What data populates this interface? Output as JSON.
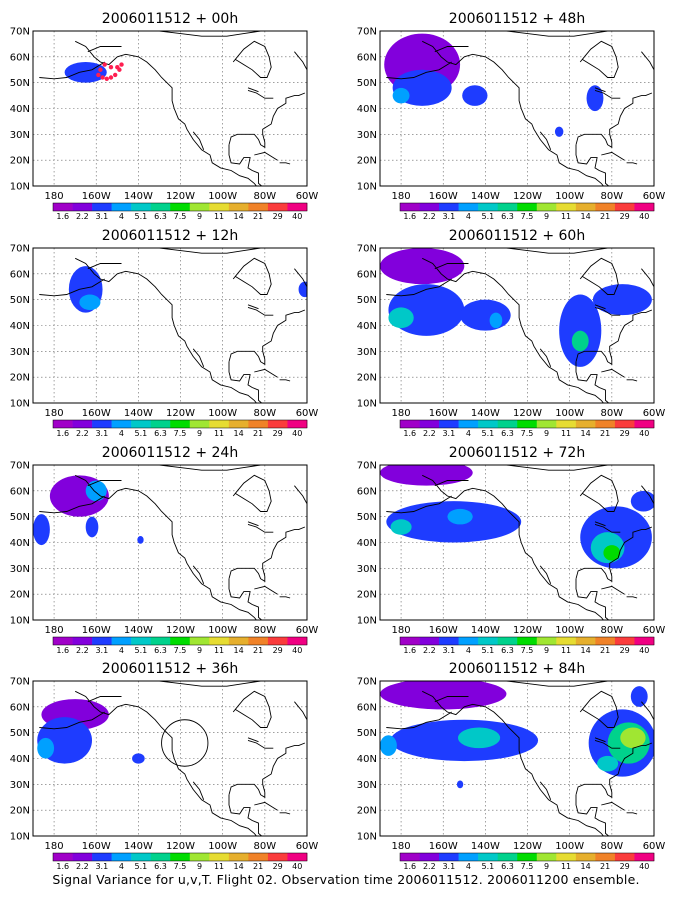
{
  "chart_data": [
    {
      "type": "heatmap",
      "title": "2006011512 + 00h",
      "xticks": [
        "180",
        "160W",
        "140W",
        "120W",
        "100W",
        "80W",
        "60W"
      ],
      "yticks": [
        "70N",
        "60N",
        "50N",
        "40N",
        "30N",
        "20N",
        "10N"
      ],
      "xlim": [
        -190,
        -60
      ],
      "ylim": [
        10,
        70
      ],
      "blobs": [
        {
          "lon": -165,
          "lat": 54,
          "rx": 10,
          "ry": 4,
          "level": 2
        }
      ],
      "markers": [
        {
          "lon": -159,
          "lat": 53
        },
        {
          "lon": -157,
          "lat": 52
        },
        {
          "lon": -155,
          "lat": 51.5
        },
        {
          "lon": -153,
          "lat": 52
        },
        {
          "lon": -151,
          "lat": 53
        },
        {
          "lon": -149,
          "lat": 55
        },
        {
          "lon": -148,
          "lat": 57
        },
        {
          "lon": -150,
          "lat": 56
        },
        {
          "lon": -153,
          "lat": 56
        },
        {
          "lon": -156,
          "lat": 57
        },
        {
          "lon": -158,
          "lat": 55
        }
      ]
    },
    {
      "type": "heatmap",
      "title": "2006011512 + 48h",
      "xticks": [
        "180",
        "160W",
        "140W",
        "120W",
        "100W",
        "80W",
        "60W"
      ],
      "yticks": [
        "70N",
        "60N",
        "50N",
        "40N",
        "30N",
        "20N",
        "10N"
      ],
      "xlim": [
        -190,
        -60
      ],
      "ylim": [
        10,
        70
      ],
      "blobs": [
        {
          "lon": -170,
          "lat": 57,
          "rx": 18,
          "ry": 12,
          "level": 1
        },
        {
          "lon": -170,
          "lat": 48,
          "rx": 14,
          "ry": 7,
          "level": 2
        },
        {
          "lon": -180,
          "lat": 45,
          "rx": 4,
          "ry": 3,
          "level": 3
        },
        {
          "lon": -145,
          "lat": 45,
          "rx": 6,
          "ry": 4,
          "level": 2
        },
        {
          "lon": -88,
          "lat": 44,
          "rx": 4,
          "ry": 5,
          "level": 2
        },
        {
          "lon": -105,
          "lat": 31,
          "rx": 2,
          "ry": 2,
          "level": 2
        }
      ],
      "markers": []
    },
    {
      "type": "heatmap",
      "title": "2006011512 + 12h",
      "xticks": [
        "180",
        "160W",
        "140W",
        "120W",
        "100W",
        "80W",
        "60W"
      ],
      "yticks": [
        "70N",
        "60N",
        "50N",
        "40N",
        "30N",
        "20N",
        "10N"
      ],
      "xlim": [
        -190,
        -60
      ],
      "ylim": [
        10,
        70
      ],
      "blobs": [
        {
          "lon": -165,
          "lat": 54,
          "rx": 8,
          "ry": 9,
          "level": 2
        },
        {
          "lon": -163,
          "lat": 49,
          "rx": 5,
          "ry": 3,
          "level": 3
        },
        {
          "lon": -61,
          "lat": 54,
          "rx": 3,
          "ry": 3,
          "level": 2
        }
      ],
      "markers": []
    },
    {
      "type": "heatmap",
      "title": "2006011512 + 60h",
      "xticks": [
        "180",
        "160W",
        "140W",
        "120W",
        "100W",
        "80W",
        "60W"
      ],
      "yticks": [
        "70N",
        "60N",
        "50N",
        "40N",
        "30N",
        "20N",
        "10N"
      ],
      "xlim": [
        -190,
        -60
      ],
      "ylim": [
        10,
        70
      ],
      "blobs": [
        {
          "lon": -170,
          "lat": 63,
          "rx": 20,
          "ry": 7,
          "level": 1
        },
        {
          "lon": -168,
          "lat": 46,
          "rx": 18,
          "ry": 10,
          "level": 2
        },
        {
          "lon": -180,
          "lat": 43,
          "rx": 6,
          "ry": 4,
          "level": 4
        },
        {
          "lon": -140,
          "lat": 44,
          "rx": 12,
          "ry": 6,
          "level": 2
        },
        {
          "lon": -135,
          "lat": 42,
          "rx": 3,
          "ry": 3,
          "level": 3
        },
        {
          "lon": -95,
          "lat": 38,
          "rx": 10,
          "ry": 14,
          "level": 2
        },
        {
          "lon": -95,
          "lat": 34,
          "rx": 4,
          "ry": 4,
          "level": 5
        },
        {
          "lon": -75,
          "lat": 50,
          "rx": 14,
          "ry": 6,
          "level": 2
        }
      ],
      "markers": []
    },
    {
      "type": "heatmap",
      "title": "2006011512 + 24h",
      "xticks": [
        "180",
        "160W",
        "140W",
        "120W",
        "100W",
        "80W",
        "60W"
      ],
      "yticks": [
        "70N",
        "60N",
        "50N",
        "40N",
        "30N",
        "20N",
        "10N"
      ],
      "xlim": [
        -190,
        -60
      ],
      "ylim": [
        10,
        70
      ],
      "blobs": [
        {
          "lon": -168,
          "lat": 58,
          "rx": 14,
          "ry": 8,
          "level": 1
        },
        {
          "lon": -160,
          "lat": 60,
          "rx": 5,
          "ry": 4,
          "level": 3
        },
        {
          "lon": -186,
          "lat": 45,
          "rx": 4,
          "ry": 6,
          "level": 2
        },
        {
          "lon": -162,
          "lat": 46,
          "rx": 3,
          "ry": 4,
          "level": 2
        },
        {
          "lon": -139,
          "lat": 41,
          "rx": 1.5,
          "ry": 1.5,
          "level": 2
        }
      ],
      "markers": []
    },
    {
      "type": "heatmap",
      "title": "2006011512 + 72h",
      "xticks": [
        "180",
        "160W",
        "140W",
        "120W",
        "100W",
        "80W",
        "60W"
      ],
      "yticks": [
        "70N",
        "60N",
        "50N",
        "40N",
        "30N",
        "20N",
        "10N"
      ],
      "xlim": [
        -190,
        -60
      ],
      "ylim": [
        10,
        70
      ],
      "blobs": [
        {
          "lon": -168,
          "lat": 67,
          "rx": 22,
          "ry": 5,
          "level": 1
        },
        {
          "lon": -155,
          "lat": 48,
          "rx": 32,
          "ry": 8,
          "level": 2
        },
        {
          "lon": -180,
          "lat": 46,
          "rx": 5,
          "ry": 3,
          "level": 4
        },
        {
          "lon": -152,
          "lat": 50,
          "rx": 6,
          "ry": 3,
          "level": 3
        },
        {
          "lon": -78,
          "lat": 42,
          "rx": 17,
          "ry": 12,
          "level": 2
        },
        {
          "lon": -82,
          "lat": 38,
          "rx": 8,
          "ry": 6,
          "level": 4
        },
        {
          "lon": -80,
          "lat": 36,
          "rx": 4,
          "ry": 3,
          "level": 6
        },
        {
          "lon": -65,
          "lat": 56,
          "rx": 6,
          "ry": 4,
          "level": 2
        }
      ],
      "markers": []
    },
    {
      "type": "heatmap",
      "title": "2006011512 + 36h",
      "xticks": [
        "180",
        "160W",
        "140W",
        "120W",
        "100W",
        "80W",
        "60W"
      ],
      "yticks": [
        "70N",
        "60N",
        "50N",
        "40N",
        "30N",
        "20N",
        "10N"
      ],
      "xlim": [
        -190,
        -60
      ],
      "ylim": [
        10,
        70
      ],
      "blobs": [
        {
          "lon": -170,
          "lat": 57,
          "rx": 16,
          "ry": 6,
          "level": 1
        },
        {
          "lon": -175,
          "lat": 47,
          "rx": 13,
          "ry": 9,
          "level": 2
        },
        {
          "lon": -184,
          "lat": 44,
          "rx": 4,
          "ry": 4,
          "level": 3
        },
        {
          "lon": -140,
          "lat": 40,
          "rx": 3,
          "ry": 2,
          "level": 2
        }
      ],
      "markers": [],
      "circles": [
        {
          "lon": -118,
          "lat": 46,
          "r_lon": 11,
          "r_lat": 9
        }
      ]
    },
    {
      "type": "heatmap",
      "title": "2006011512 + 84h",
      "xticks": [
        "180",
        "160W",
        "140W",
        "120W",
        "100W",
        "80W",
        "60W"
      ],
      "yticks": [
        "70N",
        "60N",
        "50N",
        "40N",
        "30N",
        "20N",
        "10N"
      ],
      "xlim": [
        -190,
        -60
      ],
      "ylim": [
        10,
        70
      ],
      "blobs": [
        {
          "lon": -160,
          "lat": 65,
          "rx": 30,
          "ry": 6,
          "level": 1
        },
        {
          "lon": -150,
          "lat": 47,
          "rx": 35,
          "ry": 8,
          "level": 2
        },
        {
          "lon": -143,
          "lat": 48,
          "rx": 10,
          "ry": 4,
          "level": 4
        },
        {
          "lon": -186,
          "lat": 45,
          "rx": 4,
          "ry": 4,
          "level": 3
        },
        {
          "lon": -75,
          "lat": 46,
          "rx": 16,
          "ry": 13,
          "level": 2
        },
        {
          "lon": -72,
          "lat": 46,
          "rx": 10,
          "ry": 8,
          "level": 5
        },
        {
          "lon": -70,
          "lat": 48,
          "rx": 6,
          "ry": 4,
          "level": 7
        },
        {
          "lon": -82,
          "lat": 38,
          "rx": 5,
          "ry": 3,
          "level": 4
        },
        {
          "lon": -67,
          "lat": 64,
          "rx": 4,
          "ry": 4,
          "level": 2
        },
        {
          "lon": -152,
          "lat": 30,
          "rx": 1.5,
          "ry": 1.5,
          "level": 2
        }
      ],
      "markers": []
    }
  ],
  "colorbar": {
    "labels": [
      "1.6",
      "2.2",
      "3.1",
      "4",
      "5.1",
      "6.3",
      "7.5",
      "9",
      "11",
      "14",
      "21",
      "29",
      "40"
    ],
    "colors": [
      "#a000c8",
      "#8200dc",
      "#1e3cff",
      "#00a0ff",
      "#00c8c8",
      "#00d28c",
      "#00dc00",
      "#a0e632",
      "#e6dc32",
      "#e6af2d",
      "#f08228",
      "#fa3c3c",
      "#f00082"
    ]
  },
  "caption": "Signal Variance for u,v,T. Flight 02. Observation time 2006011512. 2006011200 ensemble."
}
